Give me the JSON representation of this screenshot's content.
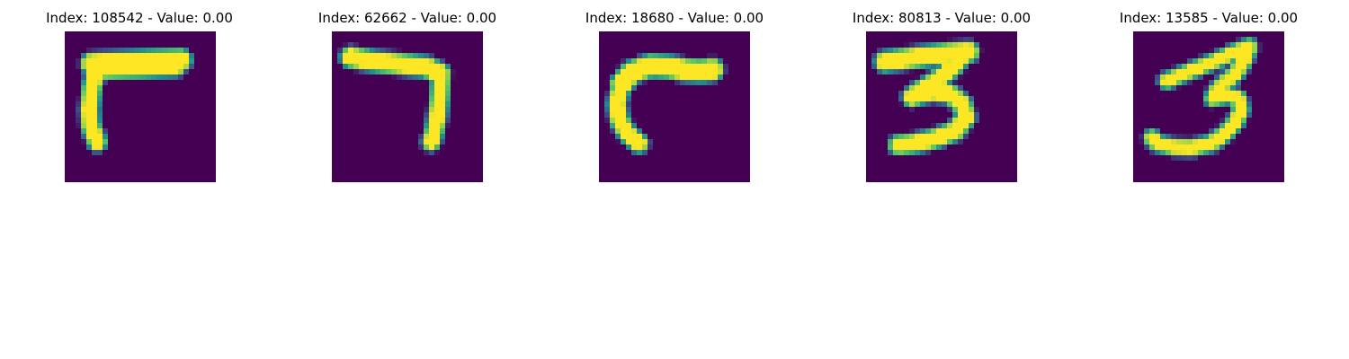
{
  "panels": [
    {
      "title": "Index: 108542 - Value: 0.00",
      "strokes": [
        {
          "pts": [
            [
              5.0,
              6.0
            ],
            [
              9.5,
              5.8
            ],
            [
              15.5,
              5.5
            ],
            [
              21.5,
              5.3
            ]
          ],
          "w": 2.8
        },
        {
          "pts": [
            [
              5.5,
              7.0
            ],
            [
              10.0,
              6.8
            ],
            [
              14.0,
              6.7
            ],
            [
              18.5,
              6.5
            ],
            [
              20.5,
              6.4
            ]
          ],
          "w": 2.6
        },
        {
          "pts": [
            [
              5.8,
              7.6
            ],
            [
              5.0,
              10.5
            ],
            [
              4.6,
              14.5
            ],
            [
              4.8,
              17.5
            ],
            [
              6.0,
              20.5
            ]
          ],
          "w": 2.2
        }
      ]
    },
    {
      "title": "Index: 62662 - Value: 0.00",
      "strokes": [
        {
          "pts": [
            [
              3.5,
              4.8
            ],
            [
              8.0,
              5.6
            ],
            [
              13.0,
              6.1
            ],
            [
              17.5,
              6.6
            ],
            [
              20.0,
              7.8
            ]
          ],
          "w": 2.6
        },
        {
          "pts": [
            [
              20.2,
              8.5
            ],
            [
              20.0,
              12.0
            ],
            [
              19.6,
              15.5
            ],
            [
              19.0,
              18.5
            ],
            [
              18.4,
              20.5
            ]
          ],
          "w": 2.1
        }
      ]
    },
    {
      "title": "Index: 18680 - Value: 0.00",
      "strokes": [
        {
          "pts": [
            [
              4.2,
              9.8
            ],
            [
              6.0,
              7.6
            ],
            [
              9.5,
              6.4
            ],
            [
              13.0,
              6.6
            ],
            [
              16.0,
              7.2
            ],
            [
              19.0,
              7.4
            ],
            [
              21.0,
              7.1
            ]
          ],
          "w": 2.9
        },
        {
          "pts": [
            [
              4.0,
              10.5
            ],
            [
              3.3,
              13.5
            ],
            [
              3.8,
              16.5
            ],
            [
              5.3,
              19.0
            ],
            [
              7.4,
              20.8
            ]
          ],
          "w": 2.2
        }
      ]
    },
    {
      "title": "Index: 80813 - Value: 0.00",
      "strokes": [
        {
          "pts": [
            [
              3.5,
              5.6
            ],
            [
              8.0,
              5.0
            ],
            [
              12.5,
              4.4
            ],
            [
              16.0,
              4.0
            ],
            [
              19.0,
              3.8
            ]
          ],
          "w": 2.6
        },
        {
          "pts": [
            [
              18.0,
              4.2
            ],
            [
              16.5,
              6.2
            ],
            [
              14.5,
              8.0
            ],
            [
              12.5,
              9.5
            ],
            [
              10.0,
              11.0
            ],
            [
              8.5,
              12.2
            ]
          ],
          "w": 2.3
        },
        {
          "pts": [
            [
              8.5,
              12.2
            ],
            [
              12.0,
              11.2
            ],
            [
              15.5,
              11.6
            ],
            [
              17.8,
              13.5
            ],
            [
              18.5,
              16.0
            ],
            [
              16.5,
              18.5
            ],
            [
              12.5,
              20.0
            ],
            [
              9.0,
              20.8
            ],
            [
              6.0,
              21.1
            ]
          ],
          "w": 2.3
        }
      ]
    },
    {
      "title": "Index: 13585 - Value: 0.00",
      "strokes": [
        {
          "pts": [
            [
              6.2,
              9.2
            ],
            [
              10.0,
              7.6
            ],
            [
              14.5,
              5.8
            ],
            [
              18.5,
              4.0
            ],
            [
              21.5,
              2.8
            ]
          ],
          "w": 1.7
        },
        {
          "pts": [
            [
              21.5,
              3.0
            ],
            [
              20.5,
              5.5
            ],
            [
              19.0,
              7.8
            ],
            [
              17.0,
              9.5
            ],
            [
              15.5,
              11.0
            ],
            [
              14.8,
              12.4
            ]
          ],
          "w": 1.8
        },
        {
          "pts": [
            [
              14.8,
              12.4
            ],
            [
              17.5,
              11.8
            ],
            [
              19.5,
              12.5
            ],
            [
              20.0,
              14.5
            ],
            [
              19.0,
              16.8
            ],
            [
              17.0,
              19.0
            ],
            [
              14.5,
              20.8
            ],
            [
              11.0,
              21.6
            ],
            [
              7.5,
              21.5
            ],
            [
              4.5,
              20.8
            ],
            [
              3.5,
              19.8
            ]
          ],
          "w": 1.8
        }
      ]
    }
  ],
  "colors": {
    "background": "#440154",
    "low": "#3b528b",
    "mid": "#21918c",
    "midHigh": "#5ec962",
    "high": "#fde725"
  }
}
